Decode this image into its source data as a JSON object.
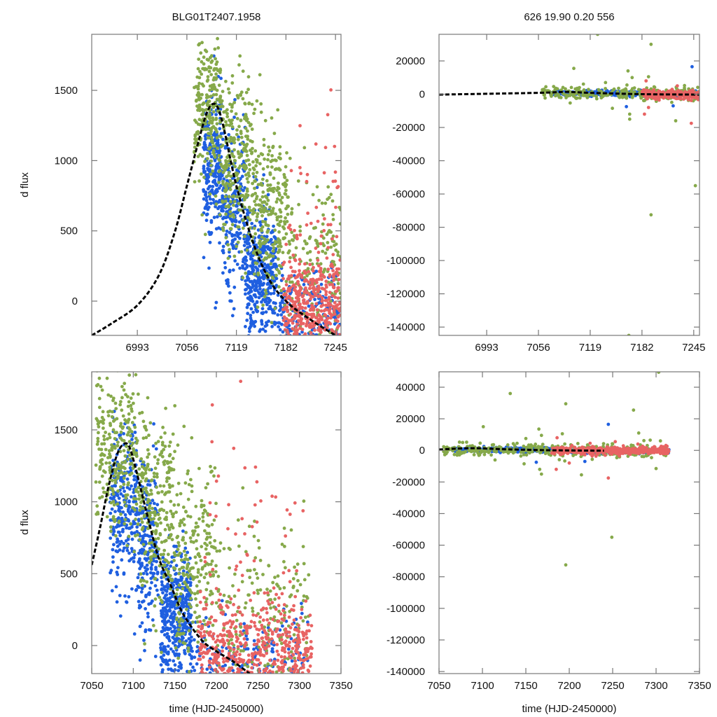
{
  "figure": {
    "title_left": "BLG01T2407.1958",
    "title_right": "626  19.90  0.20  556",
    "ylabel": "d flux",
    "xlabel": "time (HJD-2450000)"
  },
  "colors": {
    "blue": "#1f5fe0",
    "green": "#86a94a",
    "red": "#e86363",
    "model": "#000000",
    "frame": "#777777"
  },
  "chart_data": [
    {
      "id": "top-left",
      "type": "scatter",
      "title": "BLG01T2407.1958",
      "xlabel": "",
      "ylabel": "d flux",
      "xlim": [
        6935,
        7252
      ],
      "ylim": [
        -244,
        1899
      ],
      "xticks": [
        6993,
        7056,
        7119,
        7182,
        7245
      ],
      "yticks": [
        0,
        500,
        1000,
        1500
      ],
      "series": [
        {
          "name": "blue",
          "color": "blue",
          "clusters": [
            {
              "x": [
                7077,
                7100
              ],
              "y_center": 1000,
              "y_sd": 250,
              "n": 260
            },
            {
              "x": [
                7100,
                7130
              ],
              "y_center": 650,
              "y_sd": 280,
              "n": 220
            },
            {
              "x": [
                7130,
                7170
              ],
              "y_center": 200,
              "y_sd": 220,
              "n": 420
            },
            {
              "x": [
                7170,
                7252
              ],
              "y_center": -100,
              "y_sd": 150,
              "n": 200
            }
          ]
        },
        {
          "name": "green",
          "color": "green",
          "clusters": [
            {
              "x": [
                7065,
                7100
              ],
              "y_center": 1350,
              "y_sd": 280,
              "n": 240
            },
            {
              "x": [
                7100,
                7140
              ],
              "y_center": 1000,
              "y_sd": 300,
              "n": 260
            },
            {
              "x": [
                7140,
                7185
              ],
              "y_center": 650,
              "y_sd": 300,
              "n": 260
            },
            {
              "x": [
                7185,
                7252
              ],
              "y_center": 250,
              "y_sd": 320,
              "n": 180
            }
          ]
        },
        {
          "name": "red",
          "color": "red",
          "clusters": [
            {
              "x": [
                7178,
                7252
              ],
              "y_center": -50,
              "y_sd": 180,
              "n": 420
            },
            {
              "x": [
                7178,
                7252
              ],
              "y_center": 700,
              "y_sd": 450,
              "n": 50
            }
          ]
        }
      ],
      "model": {
        "peak_t": 7088,
        "peak_flux": 1400,
        "curve": [
          [
            6935,
            -244
          ],
          [
            6960,
            -160
          ],
          [
            6993,
            -30
          ],
          [
            7020,
            180
          ],
          [
            7040,
            480
          ],
          [
            7056,
            820
          ],
          [
            7070,
            1120
          ],
          [
            7080,
            1320
          ],
          [
            7088,
            1400
          ],
          [
            7095,
            1380
          ],
          [
            7103,
            1230
          ],
          [
            7119,
            820
          ],
          [
            7140,
            420
          ],
          [
            7160,
            160
          ],
          [
            7182,
            0
          ],
          [
            7210,
            -120
          ],
          [
            7245,
            -244
          ]
        ]
      }
    },
    {
      "id": "top-right",
      "type": "scatter",
      "title": "626  19.90  0.20  556",
      "xlabel": "",
      "ylabel": "",
      "xlim": [
        6935,
        7252
      ],
      "ylim": [
        -145000,
        36000
      ],
      "xticks": [
        6993,
        7056,
        7119,
        7182,
        7245
      ],
      "yticks": [
        20000,
        0,
        -20000,
        -40000,
        -60000,
        -80000,
        -100000,
        -120000,
        -140000
      ],
      "series": [
        {
          "name": "blue",
          "color": "blue",
          "clusters": [
            {
              "x": [
                7070,
                7182
              ],
              "y_center": 500,
              "y_sd": 700,
              "n": 360
            },
            {
              "x": [
                7182,
                7252
              ],
              "y_center": -300,
              "y_sd": 700,
              "n": 120
            }
          ],
          "outliers": [
            [
              7243,
              16500
            ],
            [
              7163,
              -7500
            ],
            [
              7220,
              -7000
            ]
          ]
        },
        {
          "name": "green",
          "color": "green",
          "clusters": [
            {
              "x": [
                7060,
                7182
              ],
              "y_center": 500,
              "y_sd": 1800,
              "n": 160
            },
            {
              "x": [
                7182,
                7252
              ],
              "y_center": 0,
              "y_sd": 2200,
              "n": 120
            }
          ],
          "outliers": [
            [
              7128,
              36000
            ],
            [
              7193,
              30000
            ],
            [
              7099,
              15500
            ],
            [
              7165,
              14000
            ],
            [
              7170,
              10000
            ],
            [
              7190,
              10500
            ],
            [
              7167,
              -12000
            ],
            [
              7167,
              -15000
            ],
            [
              7146,
              -8500
            ],
            [
              7223,
              -16000
            ],
            [
              7193,
              -72500
            ],
            [
              7247,
              -55000
            ],
            [
              7166,
              -145000
            ]
          ]
        },
        {
          "name": "red",
          "color": "red",
          "clusters": [
            {
              "x": [
                7182,
                7252
              ],
              "y_center": -200,
              "y_sd": 1200,
              "n": 300
            }
          ],
          "outliers": [
            [
              7185,
              -12000
            ],
            [
              7242,
              -17500
            ],
            [
              7225,
              5000
            ],
            [
              7187,
              8000
            ],
            [
              7190,
              -8000
            ]
          ]
        }
      ],
      "model": {
        "curve": [
          [
            6935,
            -244
          ],
          [
            7056,
            820
          ],
          [
            7088,
            1400
          ],
          [
            7119,
            820
          ],
          [
            7182,
            0
          ],
          [
            7252,
            -244
          ]
        ]
      }
    },
    {
      "id": "bottom-left",
      "type": "scatter",
      "title": "",
      "xlabel": "time (HJD-2450000)",
      "ylabel": "d flux",
      "xlim": [
        7050,
        7350
      ],
      "ylim": [
        -195,
        1904
      ],
      "xticks": [
        7050,
        7100,
        7150,
        7200,
        7250,
        7300,
        7350
      ],
      "yticks": [
        0,
        500,
        1000,
        1500
      ],
      "series": [
        {
          "name": "blue",
          "color": "blue",
          "clusters": [
            {
              "x": [
                7072,
                7105
              ],
              "y_center": 950,
              "y_sd": 280,
              "n": 260
            },
            {
              "x": [
                7105,
                7130
              ],
              "y_center": 650,
              "y_sd": 300,
              "n": 200
            },
            {
              "x": [
                7133,
                7170
              ],
              "y_center": 180,
              "y_sd": 220,
              "n": 440
            },
            {
              "x": [
                7170,
                7310
              ],
              "y_center": -80,
              "y_sd": 170,
              "n": 200
            }
          ]
        },
        {
          "name": "green",
          "color": "green",
          "clusters": [
            {
              "x": [
                7055,
                7105
              ],
              "y_center": 1300,
              "y_sd": 300,
              "n": 260
            },
            {
              "x": [
                7105,
                7150
              ],
              "y_center": 950,
              "y_sd": 320,
              "n": 260
            },
            {
              "x": [
                7150,
                7200
              ],
              "y_center": 550,
              "y_sd": 330,
              "n": 240
            },
            {
              "x": [
                7200,
                7312
              ],
              "y_center": 200,
              "y_sd": 330,
              "n": 220
            }
          ]
        },
        {
          "name": "red",
          "color": "red",
          "clusters": [
            {
              "x": [
                7178,
                7315
              ],
              "y_center": -40,
              "y_sd": 170,
              "n": 520
            },
            {
              "x": [
                7178,
                7305
              ],
              "y_center": 600,
              "y_sd": 450,
              "n": 70
            }
          ]
        }
      ],
      "model": {
        "curve": [
          [
            7050,
            560
          ],
          [
            7060,
            820
          ],
          [
            7070,
            1100
          ],
          [
            7080,
            1320
          ],
          [
            7088,
            1400
          ],
          [
            7095,
            1385
          ],
          [
            7103,
            1230
          ],
          [
            7115,
            950
          ],
          [
            7130,
            620
          ],
          [
            7145,
            420
          ],
          [
            7160,
            220
          ],
          [
            7182,
            40
          ],
          [
            7200,
            -40
          ],
          [
            7220,
            -110
          ],
          [
            7240,
            -195
          ]
        ]
      }
    },
    {
      "id": "bottom-right",
      "type": "scatter",
      "title": "",
      "xlabel": "time (HJD-2450000)",
      "ylabel": "",
      "xlim": [
        7050,
        7350
      ],
      "ylim": [
        -141300,
        49750
      ],
      "xticks": [
        7050,
        7100,
        7150,
        7200,
        7250,
        7300,
        7350
      ],
      "yticks": [
        40000,
        20000,
        0,
        -20000,
        -40000,
        -60000,
        -80000,
        -100000,
        -120000,
        -140000
      ],
      "series": [
        {
          "name": "blue",
          "color": "blue",
          "clusters": [
            {
              "x": [
                7065,
                7182
              ],
              "y_center": 500,
              "y_sd": 700,
              "n": 380
            },
            {
              "x": [
                7182,
                7315
              ],
              "y_center": -300,
              "y_sd": 700,
              "n": 160
            }
          ],
          "outliers": [
            [
              7245,
              16500
            ],
            [
              7162,
              -7500
            ],
            [
              7218,
              -7000
            ]
          ]
        },
        {
          "name": "green",
          "color": "green",
          "clusters": [
            {
              "x": [
                7055,
                7182
              ],
              "y_center": 300,
              "y_sd": 1800,
              "n": 170
            },
            {
              "x": [
                7182,
                7315
              ],
              "y_center": 0,
              "y_sd": 2200,
              "n": 170
            }
          ],
          "outliers": [
            [
              7132,
              36000
            ],
            [
              7196,
              29500
            ],
            [
              7274,
              25500
            ],
            [
              7303,
              49500
            ],
            [
              7101,
              15000
            ],
            [
              7165,
              13500
            ],
            [
              7168,
              9500
            ],
            [
              7192,
              10500
            ],
            [
              7280,
              11000
            ],
            [
              7150,
              7500
            ],
            [
              7305,
              6000
            ],
            [
              7148,
              -8500
            ],
            [
              7166,
              -12000
            ],
            [
              7168,
              -15000
            ],
            [
              7214,
              -15500
            ],
            [
              7300,
              -11500
            ],
            [
              7249,
              -55000
            ],
            [
              7196,
              -72500
            ],
            [
              7167,
              -145000
            ]
          ]
        },
        {
          "name": "red",
          "color": "red",
          "clusters": [
            {
              "x": [
                7180,
                7315
              ],
              "y_center": -200,
              "y_sd": 1200,
              "n": 420
            }
          ],
          "outliers": [
            [
              7185,
              -12000
            ],
            [
              7245,
              -17500
            ],
            [
              7224,
              4500
            ],
            [
              7186,
              8000
            ],
            [
              7253,
              5500
            ],
            [
              7279,
              4000
            ],
            [
              7200,
              -8000
            ]
          ]
        }
      ],
      "model": {
        "curve": [
          [
            7050,
            560
          ],
          [
            7088,
            1400
          ],
          [
            7130,
            620
          ],
          [
            7182,
            40
          ],
          [
            7240,
            -195
          ]
        ]
      }
    }
  ]
}
